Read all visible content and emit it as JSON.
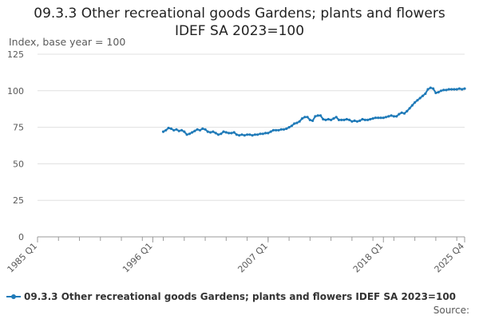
{
  "chart_data": {
    "type": "line",
    "title": "09.3.3 Other recreational goods Gardens; plants and flowers",
    "subtitle": "IDEF SA 2023=100",
    "ylabel": "Index, base year = 100",
    "xlabel": "",
    "source": "Source:",
    "ylim": [
      0,
      125
    ],
    "y_ticks": [
      0,
      25,
      50,
      75,
      100,
      125
    ],
    "x_ticks": [
      "1985 Q1",
      "1996 Q1",
      "2007 Q1",
      "2018 Q1",
      "2025 Q4"
    ],
    "grid": true,
    "legend": "bottom",
    "colors": {
      "series": "#1f7ab8",
      "grid": "#e0e0e0",
      "axis": "#9a9a9a"
    },
    "series": [
      {
        "name": "09.3.3 Other recreational goods Gardens; plants and flowers IDEF SA 2023=100",
        "points": [
          [
            "1997-01",
            72
          ],
          [
            "1997-04",
            73
          ],
          [
            "1997-07",
            74.5
          ],
          [
            "1997-10",
            74
          ],
          [
            "1998-01",
            73
          ],
          [
            "1998-04",
            73.5
          ],
          [
            "1998-07",
            72.5
          ],
          [
            "1998-10",
            73
          ],
          [
            "1999-01",
            72
          ],
          [
            "1999-04",
            70
          ],
          [
            "1999-07",
            70.5
          ],
          [
            "1999-10",
            71.5
          ],
          [
            "2000-01",
            72.5
          ],
          [
            "2000-04",
            73.5
          ],
          [
            "2000-07",
            73
          ],
          [
            "2000-10",
            74
          ],
          [
            "2001-01",
            73.5
          ],
          [
            "2001-04",
            72
          ],
          [
            "2001-07",
            71.5
          ],
          [
            "2001-10",
            72
          ],
          [
            "2002-01",
            71
          ],
          [
            "2002-04",
            70
          ],
          [
            "2002-07",
            70.5
          ],
          [
            "2002-10",
            72
          ],
          [
            "2003-01",
            71.5
          ],
          [
            "2003-04",
            71
          ],
          [
            "2003-07",
            71
          ],
          [
            "2003-10",
            71.5
          ],
          [
            "2004-01",
            70
          ],
          [
            "2004-04",
            69.5
          ],
          [
            "2004-07",
            70
          ],
          [
            "2004-10",
            69.5
          ],
          [
            "2005-01",
            70
          ],
          [
            "2005-04",
            70
          ],
          [
            "2005-07",
            69.5
          ],
          [
            "2005-10",
            70
          ],
          [
            "2006-01",
            70
          ],
          [
            "2006-04",
            70.5
          ],
          [
            "2006-07",
            70.5
          ],
          [
            "2006-10",
            71
          ],
          [
            "2007-01",
            71
          ],
          [
            "2007-04",
            72
          ],
          [
            "2007-07",
            73
          ],
          [
            "2007-10",
            73
          ],
          [
            "2008-01",
            73
          ],
          [
            "2008-04",
            73.5
          ],
          [
            "2008-07",
            73.5
          ],
          [
            "2008-10",
            74
          ],
          [
            "2009-01",
            75
          ],
          [
            "2009-04",
            76
          ],
          [
            "2009-07",
            77.5
          ],
          [
            "2009-10",
            78
          ],
          [
            "2010-01",
            79
          ],
          [
            "2010-04",
            81
          ],
          [
            "2010-07",
            82
          ],
          [
            "2010-10",
            82
          ],
          [
            "2011-01",
            80
          ],
          [
            "2011-04",
            79.5
          ],
          [
            "2011-07",
            82.5
          ],
          [
            "2011-10",
            83
          ],
          [
            "2012-01",
            83
          ],
          [
            "2012-04",
            80.5
          ],
          [
            "2012-07",
            80
          ],
          [
            "2012-10",
            80.5
          ],
          [
            "2013-01",
            80
          ],
          [
            "2013-04",
            81
          ],
          [
            "2013-07",
            82
          ],
          [
            "2013-10",
            80
          ],
          [
            "2014-01",
            80
          ],
          [
            "2014-04",
            80
          ],
          [
            "2014-07",
            80.5
          ],
          [
            "2014-10",
            80
          ],
          [
            "2015-01",
            79
          ],
          [
            "2015-04",
            79.5
          ],
          [
            "2015-07",
            79
          ],
          [
            "2015-10",
            79.5
          ],
          [
            "2016-01",
            80.5
          ],
          [
            "2016-04",
            80
          ],
          [
            "2016-07",
            80
          ],
          [
            "2016-10",
            80.5
          ],
          [
            "2017-01",
            81
          ],
          [
            "2017-04",
            81.5
          ],
          [
            "2017-07",
            81.5
          ],
          [
            "2017-10",
            81.5
          ],
          [
            "2018-01",
            81.5
          ],
          [
            "2018-04",
            82
          ],
          [
            "2018-07",
            82.5
          ],
          [
            "2018-10",
            83
          ],
          [
            "2019-01",
            82.5
          ],
          [
            "2019-04",
            82.5
          ],
          [
            "2019-07",
            84
          ],
          [
            "2019-10",
            85
          ],
          [
            "2020-01",
            84.5
          ],
          [
            "2020-04",
            86
          ],
          [
            "2020-07",
            88
          ],
          [
            "2020-10",
            90
          ],
          [
            "2021-01",
            92
          ],
          [
            "2021-04",
            93.5
          ],
          [
            "2021-07",
            95
          ],
          [
            "2021-10",
            96.5
          ],
          [
            "2022-01",
            98
          ],
          [
            "2022-04",
            101
          ],
          [
            "2022-07",
            102
          ],
          [
            "2022-10",
            101.5
          ],
          [
            "2023-01",
            98.5
          ],
          [
            "2023-04",
            99
          ],
          [
            "2023-07",
            100
          ],
          [
            "2023-10",
            100.5
          ],
          [
            "2024-01",
            100.5
          ],
          [
            "2024-04",
            101
          ],
          [
            "2024-07",
            101
          ],
          [
            "2024-10",
            101
          ],
          [
            "2025-01",
            101
          ],
          [
            "2025-04",
            101.5
          ],
          [
            "2025-07",
            101
          ],
          [
            "2025-10",
            101.5
          ]
        ]
      }
    ]
  }
}
